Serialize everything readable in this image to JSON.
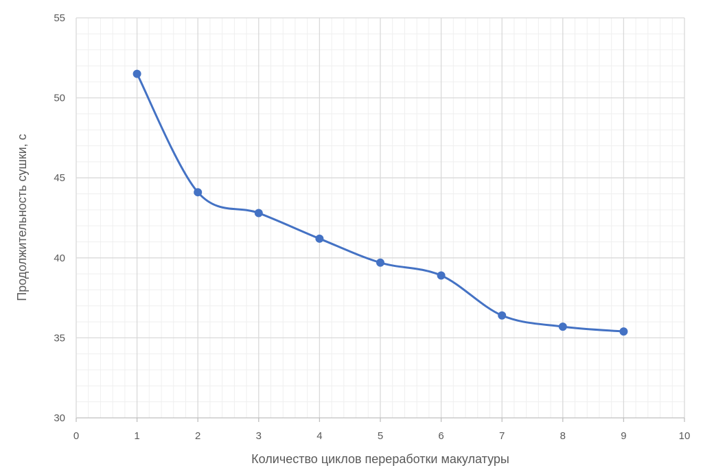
{
  "chart_data": {
    "type": "scatter",
    "xlabel": "Количество циклов переработки макулатуры",
    "ylabel": "Продолжительность сушки, с",
    "xlim": [
      0,
      10
    ],
    "ylim": [
      30,
      55
    ],
    "x_ticks": [
      0,
      1,
      2,
      3,
      4,
      5,
      6,
      7,
      8,
      9,
      10
    ],
    "y_ticks": [
      30,
      35,
      40,
      45,
      50,
      55
    ],
    "grid": true,
    "minor_grid": true,
    "smooth_line": true,
    "series": [
      {
        "color": "#4472C4",
        "points": [
          {
            "x": 1,
            "y": 51.5
          },
          {
            "x": 2,
            "y": 44.1
          },
          {
            "x": 3,
            "y": 42.8
          },
          {
            "x": 4,
            "y": 41.2
          },
          {
            "x": 5,
            "y": 39.7
          },
          {
            "x": 6,
            "y": 38.9
          },
          {
            "x": 7,
            "y": 36.4
          },
          {
            "x": 8,
            "y": 35.7
          },
          {
            "x": 9,
            "y": 35.4
          }
        ]
      }
    ]
  }
}
